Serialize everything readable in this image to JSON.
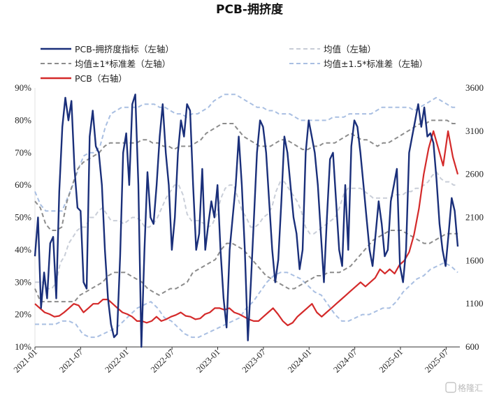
{
  "chart_data": {
    "type": "line",
    "title": "PCB-拥挤度",
    "x_labels": [
      "2021-01",
      "2021-07",
      "2022-01",
      "2022-07",
      "2023-01",
      "2023-07",
      "2024-01",
      "2024-07",
      "2025-01",
      "2025-07"
    ],
    "y_left": {
      "ticks": [
        "90%",
        "80%",
        "70%",
        "60%",
        "50%",
        "40%",
        "30%",
        "20%",
        "10%"
      ],
      "min": 10,
      "max": 90
    },
    "y_right": {
      "ticks": [
        "3600",
        "3100",
        "2600",
        "2100",
        "1600",
        "1100",
        "600"
      ],
      "min": 600,
      "max": 3600
    },
    "legend": [
      {
        "id": "crowd",
        "label": "PCB-拥挤度指标（左轴）",
        "color": "#1a2f7a",
        "style": "solid"
      },
      {
        "id": "mean",
        "label": "均值（左轴）",
        "color": "#c7ccd6",
        "style": "dashed"
      },
      {
        "id": "std1",
        "label": "均值±1*标准差（左轴）",
        "color": "#8c8c8c",
        "style": "dashed"
      },
      {
        "id": "std15",
        "label": "均值±1.5*标准差（左轴）",
        "color": "#a9bfe2",
        "style": "dashed"
      },
      {
        "id": "pcb",
        "label": "PCB（右轴）",
        "color": "#d42a2a",
        "style": "solid"
      }
    ],
    "series": [
      {
        "id": "crowd",
        "axis": "left",
        "values": [
          38,
          50,
          22,
          33,
          25,
          42,
          44,
          25,
          58,
          78,
          87,
          80,
          86,
          65,
          53,
          52,
          30,
          28,
          75,
          83,
          72,
          70,
          60,
          40,
          25,
          17,
          13,
          14,
          38,
          70,
          76,
          60,
          85,
          88,
          60,
          10,
          40,
          64,
          50,
          48,
          60,
          75,
          85,
          70,
          60,
          40,
          50,
          70,
          80,
          75,
          85,
          83,
          60,
          40,
          45,
          65,
          40,
          48,
          55,
          50,
          60,
          40,
          25,
          16,
          40,
          50,
          60,
          75,
          60,
          40,
          12,
          30,
          50,
          70,
          80,
          78,
          70,
          55,
          40,
          30,
          37,
          55,
          75,
          70,
          60,
          50,
          45,
          34,
          40,
          70,
          80,
          75,
          70,
          60,
          45,
          30,
          50,
          68,
          70,
          55,
          40,
          35,
          60,
          40,
          72,
          80,
          78,
          70,
          60,
          50,
          40,
          35,
          45,
          55,
          48,
          38,
          40,
          55,
          60,
          65,
          35,
          30,
          40,
          70,
          75,
          80,
          85,
          78,
          84,
          75,
          76,
          73,
          62,
          48,
          40,
          35,
          45,
          56,
          52,
          41
        ]
      },
      {
        "id": "mean",
        "axis": "left",
        "values": [
          30,
          30,
          30,
          28,
          28,
          30,
          36,
          38,
          42,
          44,
          46,
          47,
          47,
          50,
          50,
          52,
          53,
          51,
          49,
          49,
          49,
          48,
          49,
          50,
          50,
          49,
          47,
          47,
          48,
          50,
          53,
          56,
          58,
          60,
          60,
          57,
          51,
          49,
          49,
          49,
          48,
          47,
          48,
          51,
          56,
          59,
          60,
          60,
          56,
          52,
          50,
          47,
          47,
          48,
          50,
          51,
          53,
          58,
          61,
          61,
          59,
          57,
          55,
          52,
          47,
          45,
          45,
          46,
          47,
          48,
          49,
          50,
          53,
          57,
          59,
          59,
          59,
          59,
          58,
          57,
          56,
          56,
          56,
          56,
          56,
          57,
          57,
          57,
          58,
          58,
          59,
          59,
          60,
          61,
          63,
          64,
          62,
          61,
          61,
          60,
          60
        ]
      },
      {
        "id": "std1_upper",
        "axis": "left",
        "values": [
          55,
          53,
          48,
          46,
          46,
          47,
          55,
          60,
          65,
          67,
          68,
          69,
          70,
          72,
          73,
          73,
          73,
          73,
          73,
          73,
          74,
          74,
          73,
          73,
          72,
          72,
          71,
          72,
          72,
          72,
          73,
          74,
          76,
          77,
          78,
          79,
          79,
          79,
          77,
          75,
          74,
          73,
          72,
          72,
          72,
          73,
          74,
          74,
          73,
          72,
          71,
          71,
          72,
          72,
          73,
          73,
          73,
          74,
          75,
          76,
          75,
          74,
          74,
          73,
          72,
          73,
          73,
          74,
          75,
          76,
          77,
          78,
          79,
          79,
          80,
          80,
          80,
          80,
          79,
          79
        ]
      },
      {
        "id": "std1_lower",
        "axis": "left",
        "values": [
          28,
          24,
          24,
          24,
          24,
          24,
          24,
          24,
          26,
          27,
          28,
          29,
          30,
          32,
          33,
          33,
          33,
          32,
          31,
          30,
          28,
          27,
          26,
          27,
          28,
          28,
          29,
          30,
          33,
          34,
          35,
          36,
          37,
          40,
          42,
          42,
          41,
          40,
          38,
          36,
          34,
          32,
          31,
          30,
          29,
          28,
          28,
          29,
          30,
          31,
          32,
          32,
          33,
          33,
          33,
          34,
          35,
          37,
          39,
          41,
          43,
          44,
          45,
          46,
          46,
          46,
          45,
          44,
          43,
          42,
          42,
          43,
          44,
          45,
          45,
          45
        ]
      },
      {
        "id": "std15_upper",
        "axis": "left",
        "values": [
          58,
          54,
          52,
          52,
          52,
          52,
          56,
          60,
          65,
          69,
          70,
          70,
          72,
          78,
          82,
          83,
          84,
          84,
          84,
          84,
          85,
          85,
          85,
          84,
          84,
          83,
          82,
          82,
          81,
          82,
          82,
          83,
          84,
          86,
          87,
          88,
          88,
          88,
          87,
          86,
          85,
          84,
          84,
          83,
          83,
          82,
          82,
          82,
          81,
          80,
          80,
          80,
          80,
          80,
          80,
          81,
          81,
          81,
          82,
          82,
          82,
          82,
          82,
          83,
          84,
          84,
          84,
          84,
          84,
          84,
          83,
          84,
          85,
          86,
          87,
          86,
          85,
          84,
          84
        ]
      },
      {
        "id": "std15_lower",
        "axis": "left",
        "values": [
          17,
          17,
          17,
          17,
          18,
          18,
          17,
          14,
          13,
          13,
          14,
          15,
          16,
          18,
          20,
          22,
          23,
          24,
          22,
          19,
          18,
          16,
          14,
          13,
          13,
          14,
          15,
          16,
          17,
          18,
          19,
          22,
          24,
          27,
          30,
          32,
          33,
          33,
          32,
          31,
          29,
          27,
          26,
          23,
          20,
          18,
          18,
          19,
          20,
          20,
          21,
          22,
          22,
          24,
          27,
          29,
          31,
          32,
          34,
          35,
          36,
          35,
          33
        ]
      },
      {
        "id": "pcb",
        "axis": "right",
        "values": [
          1100,
          1050,
          1000,
          980,
          950,
          960,
          1000,
          1050,
          1100,
          1080,
          1000,
          1050,
          1100,
          1100,
          1150,
          1150,
          1100,
          1050,
          1000,
          980,
          950,
          900,
          900,
          880,
          900,
          950,
          900,
          920,
          950,
          970,
          1000,
          960,
          950,
          920,
          930,
          980,
          1000,
          1050,
          1050,
          1030,
          1050,
          1000,
          980,
          950,
          920,
          900,
          900,
          950,
          1000,
          1050,
          980,
          900,
          850,
          880,
          950,
          1000,
          1050,
          1100,
          1000,
          950,
          1000,
          1050,
          1100,
          1150,
          1200,
          1250,
          1300,
          1350,
          1300,
          1350,
          1400,
          1500,
          1450,
          1500,
          1450,
          1550,
          1600,
          1700,
          1900,
          2200,
          2600,
          2900,
          3100,
          2900,
          2700,
          3100,
          2800,
          2600
        ]
      }
    ]
  },
  "watermark": "格隆汇"
}
